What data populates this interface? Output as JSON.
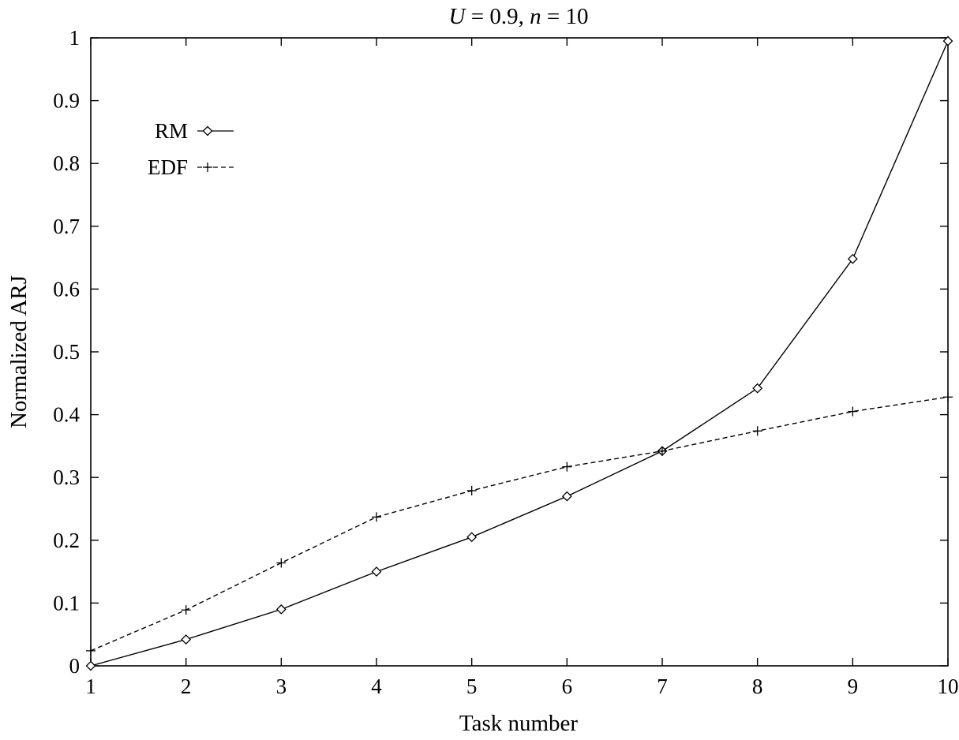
{
  "chart_data": {
    "type": "line",
    "title": {
      "var1": "U",
      "eq1": " = 0.9, ",
      "var2": "n",
      "eq2": " = 10"
    },
    "xlabel": "Task number",
    "ylabel": "Normalized  ARJ",
    "xlim": [
      1,
      10
    ],
    "ylim": [
      0,
      1
    ],
    "x_ticks": [
      "1",
      "2",
      "3",
      "4",
      "5",
      "6",
      "7",
      "8",
      "9",
      "10"
    ],
    "y_ticks": [
      "0",
      "0.1",
      "0.2",
      "0.3",
      "0.4",
      "0.5",
      "0.6",
      "0.7",
      "0.8",
      "0.9",
      "1"
    ],
    "grid": false,
    "legend_position": "top-left",
    "x": [
      1,
      2,
      3,
      4,
      5,
      6,
      7,
      8,
      9,
      10
    ],
    "series": [
      {
        "name": "RM",
        "marker": "diamond",
        "line_style": "solid",
        "values": [
          0.0,
          0.042,
          0.09,
          0.15,
          0.205,
          0.27,
          0.342,
          0.442,
          0.648,
          0.995
        ]
      },
      {
        "name": "EDF",
        "marker": "plus",
        "line_style": "dashed",
        "values": [
          0.024,
          0.089,
          0.164,
          0.237,
          0.279,
          0.317,
          0.342,
          0.374,
          0.405,
          0.428
        ]
      }
    ]
  }
}
